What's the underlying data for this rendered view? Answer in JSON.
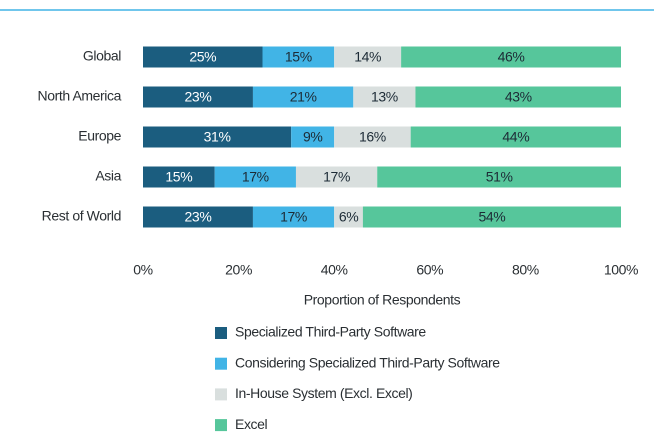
{
  "chart_data": {
    "type": "stacked_barh",
    "categories": [
      "Global",
      "North America",
      "Europe",
      "Asia",
      "Rest of World"
    ],
    "series": [
      {
        "name": "Specialized Third-Party Software",
        "color": "#1b5d7f",
        "label_color": "#ffffff",
        "values": [
          25,
          23,
          31,
          15,
          23
        ],
        "value_labels": [
          "25%",
          "23%",
          "31%",
          "15%",
          "23%"
        ]
      },
      {
        "name": "Considering Specialized Third-Party Software",
        "color": "#41b4e6",
        "label_color": "#1d2b36",
        "values": [
          15,
          21,
          9,
          17,
          17
        ],
        "value_labels": [
          "15%",
          "21%",
          "9%",
          "17%",
          "17%"
        ]
      },
      {
        "name": "In-House System (Excl. Excel)",
        "color": "#d9dfde",
        "label_color": "#1d2b36",
        "values": [
          14,
          13,
          16,
          17,
          6
        ],
        "value_labels": [
          "14%",
          "13%",
          "16%",
          "17%",
          "6%"
        ]
      },
      {
        "name": "Excel",
        "color": "#56c69b",
        "label_color": "#1d2b36",
        "values": [
          46,
          43,
          44,
          51,
          54
        ],
        "value_labels": [
          "46%",
          "43%",
          "44%",
          "51%",
          "54%"
        ]
      }
    ],
    "xlabel": "Proportion of Respondents",
    "xlim": [
      0,
      100
    ],
    "xticks": [
      {
        "value": 0,
        "label": "0%"
      },
      {
        "value": 20,
        "label": "20%"
      },
      {
        "value": 40,
        "label": "40%"
      },
      {
        "value": 60,
        "label": "60%"
      },
      {
        "value": 80,
        "label": "80%"
      },
      {
        "value": 100,
        "label": "100%"
      }
    ],
    "grid": false
  }
}
